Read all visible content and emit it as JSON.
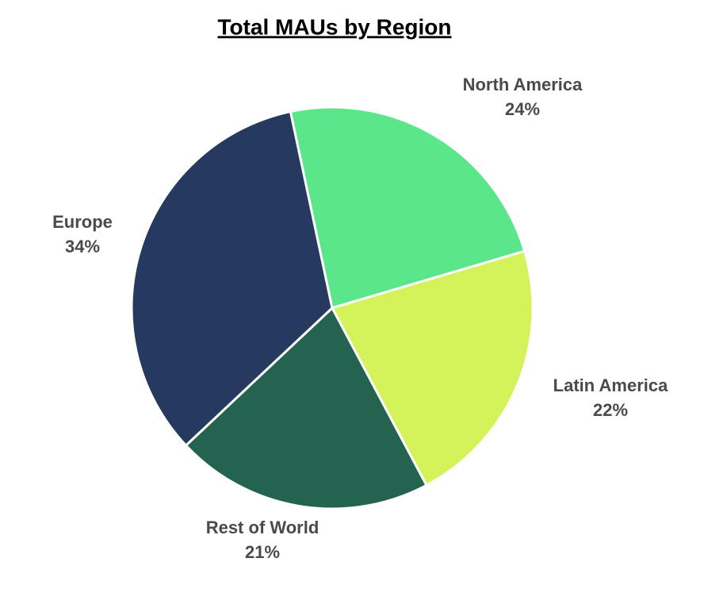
{
  "chart_data": {
    "type": "pie",
    "title": "Total MAUs by Region",
    "categories": [
      "North America",
      "Latin America",
      "Rest of World",
      "Europe"
    ],
    "values": [
      24,
      22,
      21,
      34
    ],
    "value_labels": [
      "24%",
      "22%",
      "21%",
      "34%"
    ],
    "colors": [
      "#5ce68a",
      "#d4f25a",
      "#236350",
      "#253a5e"
    ]
  }
}
